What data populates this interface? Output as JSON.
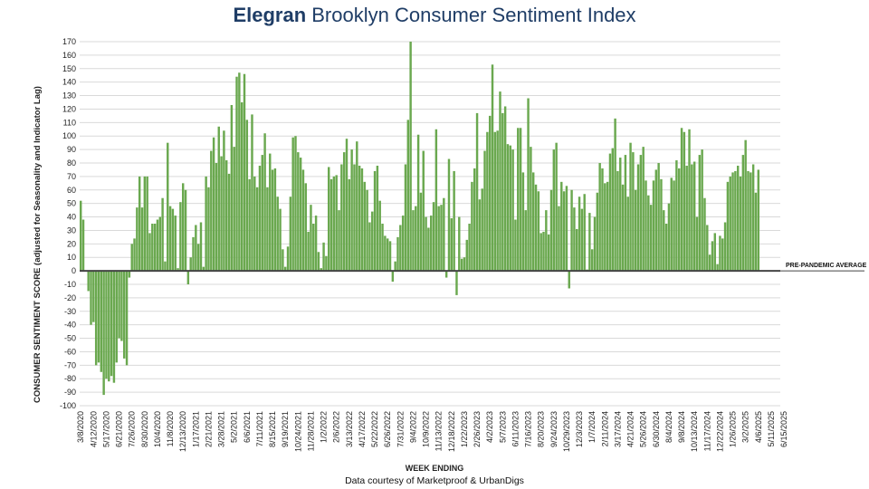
{
  "title": {
    "brand": "Elegran",
    "rest": " Brooklyn Consumer Sentiment Index"
  },
  "source": "Data courtesy of Marketproof & UrbanDigs",
  "colors": {
    "bar": "#6aa84f",
    "baseline": "#444444",
    "grid": "#d9d9d9",
    "title": "#1f3d66"
  },
  "chart_data": {
    "type": "bar",
    "title": "Elegran Brooklyn Consumer Sentiment Index",
    "xlabel": "WEEK ENDING",
    "ylabel": "CONSUMER SENTIMENT SCORE (adjusted for Seasonality and Indicator Lag)",
    "ylim": [
      -100,
      170
    ],
    "ytick_step": 10,
    "grid": true,
    "annotation": "PRE-PANDEMIC AVERAGE",
    "annotation_value": 0,
    "x_tick_labels": [
      "3/8/2020",
      "4/12/2020",
      "5/17/2020",
      "6/21/2020",
      "7/26/2020",
      "8/30/2020",
      "10/4/2020",
      "11/8/2020",
      "12/13/2020",
      "1/17/2021",
      "2/21/2021",
      "3/28/2021",
      "5/2/2021",
      "6/6/2021",
      "7/11/2021",
      "8/15/2021",
      "9/19/2021",
      "10/24/2021",
      "11/28/2021",
      "1/2/2022",
      "2/6/2022",
      "3/13/2022",
      "4/17/2022",
      "5/22/2022",
      "6/26/2022",
      "7/31/2022",
      "9/4/2022",
      "10/9/2022",
      "11/13/2022",
      "12/18/2022",
      "1/22/2023",
      "2/26/2023",
      "4/2/2023",
      "5/7/2023",
      "6/11/2023",
      "7/16/2023",
      "8/20/2023",
      "9/24/2023",
      "10/29/2023",
      "12/3/2023",
      "1/7/2024",
      "2/11/2024",
      "3/17/2024",
      "4/21/2024",
      "5/26/2024",
      "6/30/2024",
      "8/4/2024",
      "9/8/2024",
      "10/13/2024",
      "11/17/2024",
      "12/22/2024",
      "1/26/2025",
      "3/2/2025",
      "4/6/2025",
      "5/11/2025",
      "6/15/2025"
    ],
    "values": [
      52,
      38,
      0,
      -15,
      -40,
      -38,
      -70,
      -68,
      -75,
      -92,
      -80,
      -82,
      -78,
      -83,
      -68,
      -50,
      -52,
      -65,
      -70,
      -5,
      20,
      24,
      47,
      70,
      47,
      70,
      70,
      28,
      35,
      35,
      38,
      40,
      54,
      7,
      95,
      48,
      46,
      41,
      2,
      51,
      65,
      60,
      -10,
      10,
      25,
      34,
      20,
      36,
      3,
      70,
      62,
      89,
      99,
      80,
      107,
      85,
      104,
      82,
      72,
      123,
      92,
      144,
      147,
      125,
      146,
      112,
      68,
      116,
      70,
      62,
      78,
      86,
      102,
      62,
      87,
      75,
      76,
      55,
      46,
      16,
      3,
      18,
      55,
      99,
      100,
      88,
      84,
      75,
      65,
      29,
      49,
      35,
      41,
      14,
      2,
      21,
      11,
      77,
      68,
      70,
      71,
      45,
      79,
      88,
      98,
      68,
      90,
      79,
      96,
      78,
      76,
      66,
      60,
      36,
      44,
      74,
      78,
      52,
      35,
      26,
      24,
      22,
      -8,
      7,
      25,
      34,
      41,
      79,
      112,
      170,
      45,
      48,
      101,
      58,
      89,
      40,
      32,
      41,
      51,
      105,
      48,
      49,
      54,
      -5,
      83,
      39,
      74,
      -18,
      40,
      9,
      10,
      23,
      35,
      66,
      76,
      117,
      53,
      61,
      89,
      103,
      115,
      153,
      103,
      104,
      133,
      117,
      122,
      94,
      93,
      90,
      38,
      106,
      106,
      73,
      45,
      128,
      92,
      73,
      64,
      59,
      28,
      29,
      45,
      27,
      60,
      90,
      95,
      48,
      66,
      59,
      63,
      -13,
      60,
      47,
      31,
      55,
      46,
      57,
      1,
      43,
      16,
      40,
      58,
      80,
      76,
      65,
      66,
      87,
      91,
      113,
      74,
      84,
      64,
      86,
      55,
      95,
      88,
      60,
      79,
      86,
      92,
      67,
      56,
      49,
      67,
      75,
      80,
      68,
      45,
      35,
      50,
      69,
      67,
      82,
      76,
      106,
      103,
      78,
      105,
      79,
      81,
      40,
      86,
      90,
      54,
      34,
      12,
      22,
      28,
      5,
      26,
      24,
      36,
      66,
      70,
      73,
      74,
      78,
      70,
      86,
      97,
      74,
      73,
      79,
      58,
      75
    ],
    "weekly_from": "3/8/2020"
  }
}
